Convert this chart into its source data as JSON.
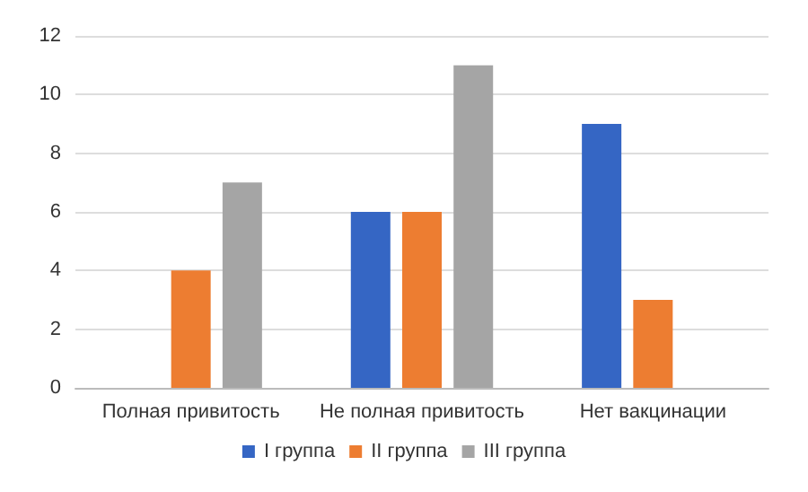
{
  "chart_data": {
    "type": "bar",
    "categories": [
      "Полная привитость",
      "Не полная привитость",
      "Нет вакцинации"
    ],
    "series": [
      {
        "name": "I группа",
        "color": "#3566c4",
        "values": [
          0,
          6,
          9
        ]
      },
      {
        "name": "II группа",
        "color": "#ed7d31",
        "values": [
          4,
          6,
          3
        ]
      },
      {
        "name": "III группа",
        "color": "#a5a5a5",
        "values": [
          7,
          11,
          0
        ]
      }
    ],
    "ylim": [
      0,
      12
    ],
    "yticks": [
      0,
      2,
      4,
      6,
      8,
      10,
      12
    ],
    "grid": "y",
    "legend": "bottom"
  }
}
